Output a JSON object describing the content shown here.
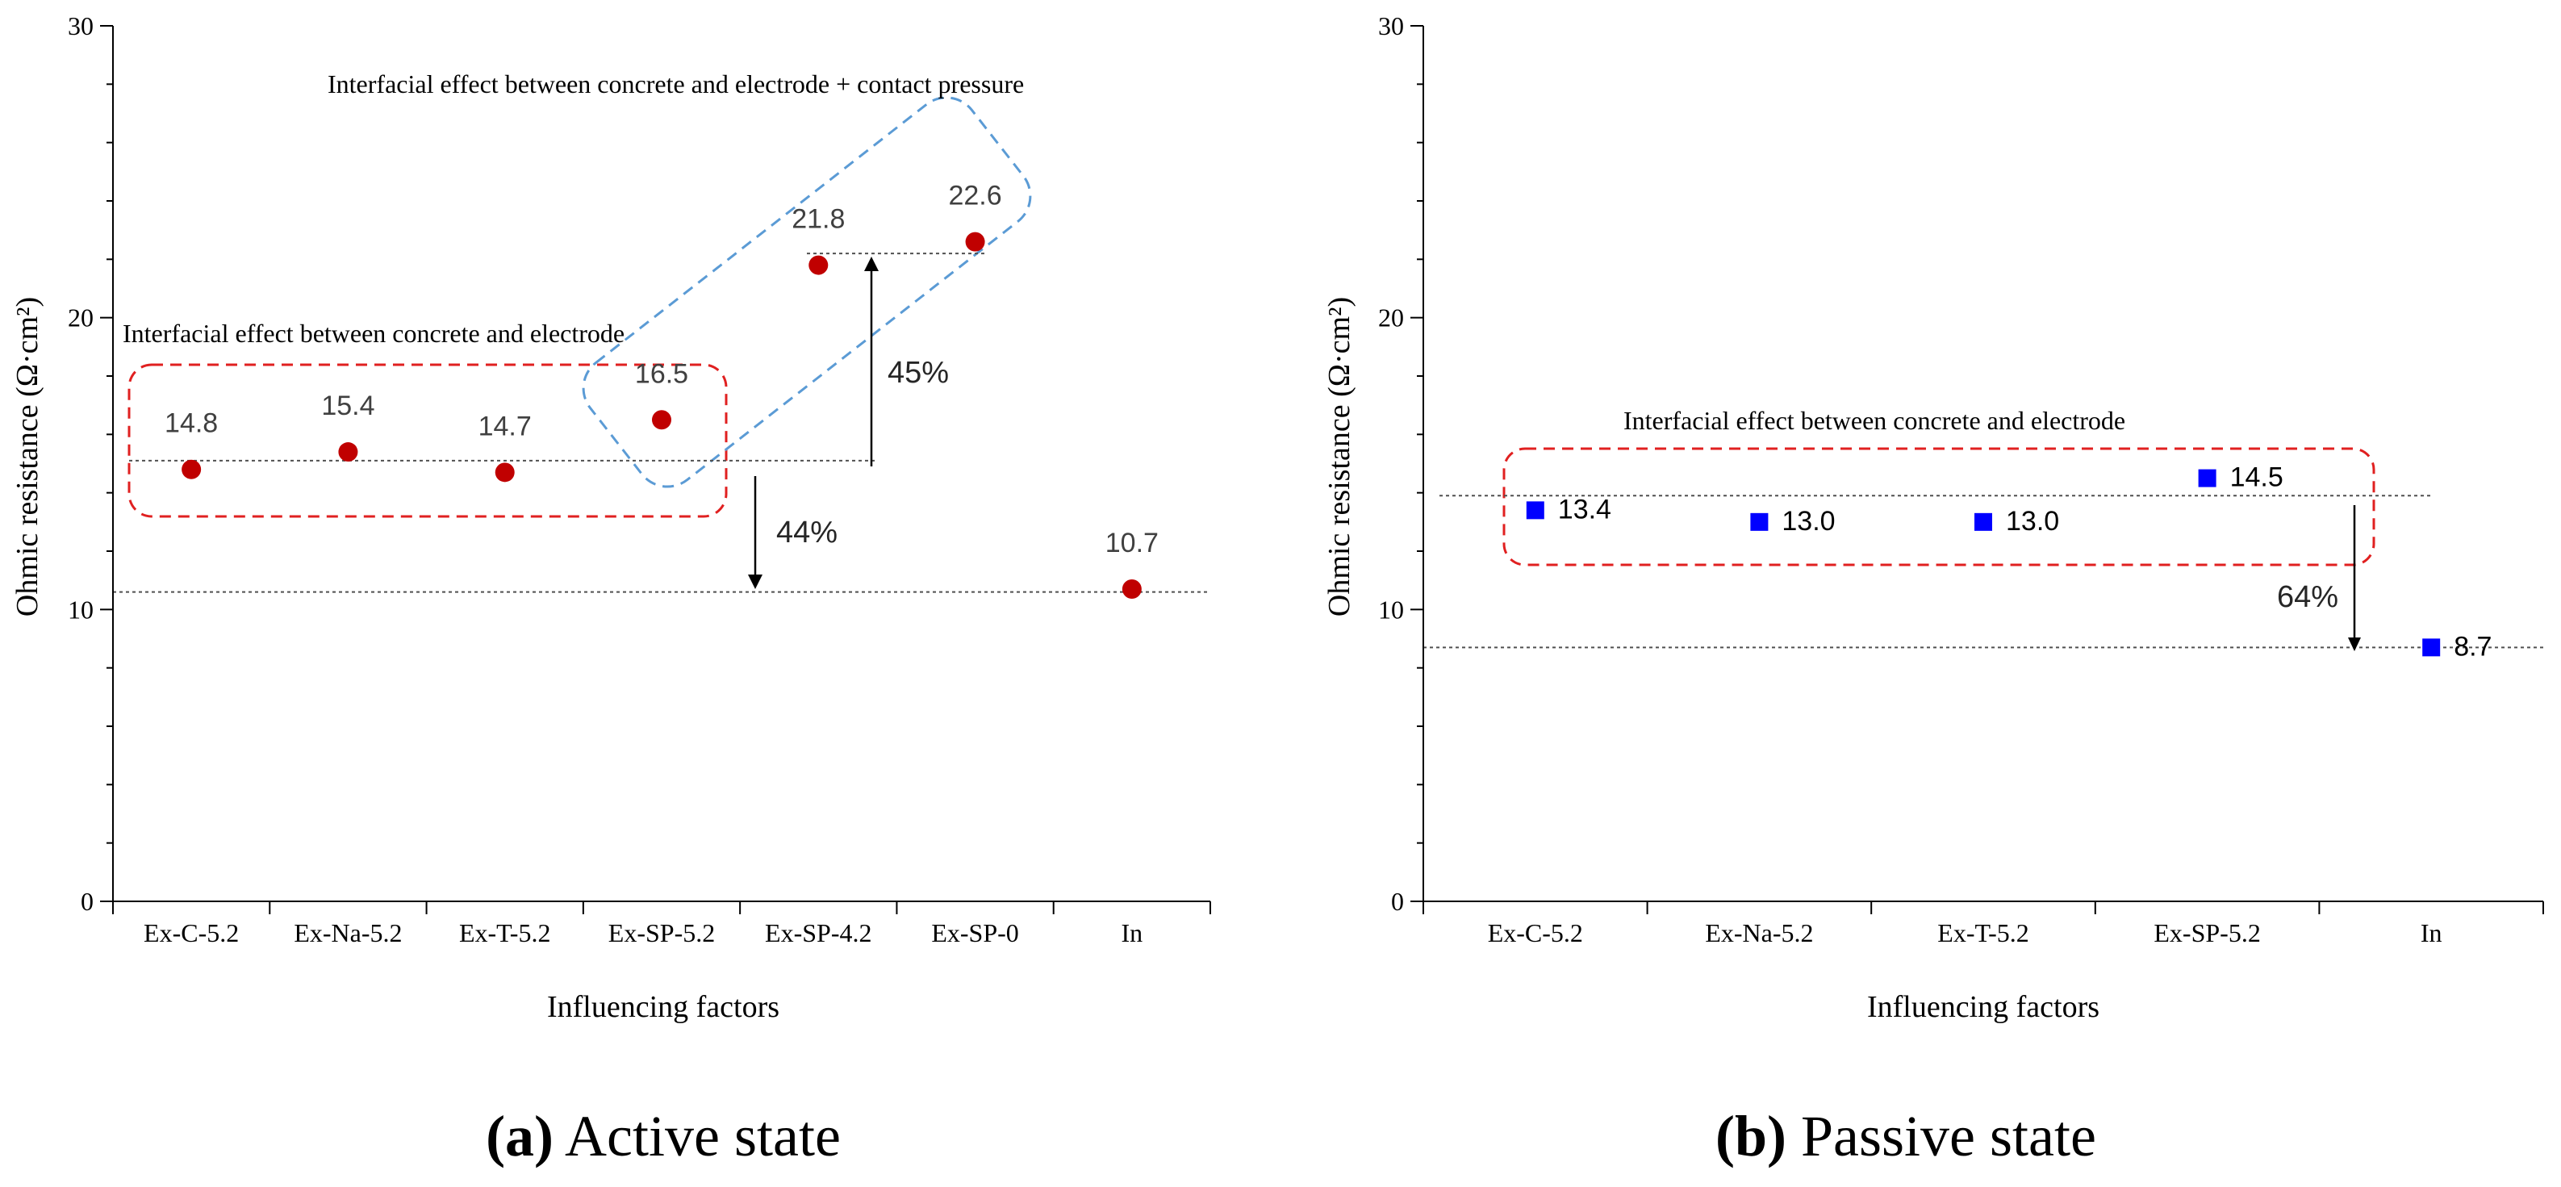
{
  "chart_data": [
    {
      "id": "a",
      "type": "scatter",
      "caption_letter": "(a)",
      "caption_text": " Active state",
      "xlabel": "Influencing factors",
      "ylabel": "Ohmic resistance (Ω·cm²)",
      "categories": [
        "Ex-C-5.2",
        "Ex-Na-5.2",
        "Ex-T-5.2",
        "Ex-SP-5.2",
        "Ex-SP-4.2",
        "Ex-SP-0",
        "In"
      ],
      "values": [
        14.8,
        15.4,
        14.7,
        16.5,
        21.8,
        22.6,
        10.7
      ],
      "value_labels": [
        "14.8",
        "15.4",
        "14.7",
        "16.5",
        "21.8",
        "22.6",
        "10.7"
      ],
      "marker": "circle",
      "marker_color": "#c00000",
      "ylim": [
        0,
        30
      ],
      "yticks": [
        0,
        10,
        20,
        30
      ],
      "ytick_labels": [
        "0",
        "10",
        "20",
        "30"
      ],
      "grid": false,
      "reference_lines": [
        15.1,
        10.6,
        22.2
      ],
      "annotations": [
        {
          "text": "Interfacial effect between concrete and electrode",
          "color": "#e02020"
        },
        {
          "text": "Interfacial effect between concrete and electrode + contact pressure",
          "color": "#5b9bd5"
        },
        {
          "text": "45%",
          "from": 15.1,
          "to": 22.2
        },
        {
          "text": "44%",
          "from": 15.1,
          "to": 10.6
        }
      ]
    },
    {
      "id": "b",
      "type": "scatter",
      "caption_letter": "(b)",
      "caption_text": " Passive state",
      "xlabel": "Influencing factors",
      "ylabel": "Ohmic resistance (Ω·cm²)",
      "categories": [
        "Ex-C-5.2",
        "Ex-Na-5.2",
        "Ex-T-5.2",
        "Ex-SP-5.2",
        "In"
      ],
      "values": [
        13.4,
        13.0,
        13.0,
        14.5,
        8.7
      ],
      "value_labels": [
        "13.4",
        "13.0",
        "13.0",
        "14.5",
        "8.7"
      ],
      "marker": "square",
      "marker_color": "#0000ff",
      "ylim": [
        0,
        30
      ],
      "yticks": [
        0,
        10,
        20,
        30
      ],
      "ytick_labels": [
        "0",
        "10",
        "20",
        "30"
      ],
      "grid": false,
      "reference_lines": [
        13.9,
        8.7
      ],
      "annotations": [
        {
          "text": "Interfacial effect between concrete and electrode",
          "color": "#e02020"
        },
        {
          "text": "64%",
          "from": 13.9,
          "to": 8.7
        }
      ]
    }
  ]
}
